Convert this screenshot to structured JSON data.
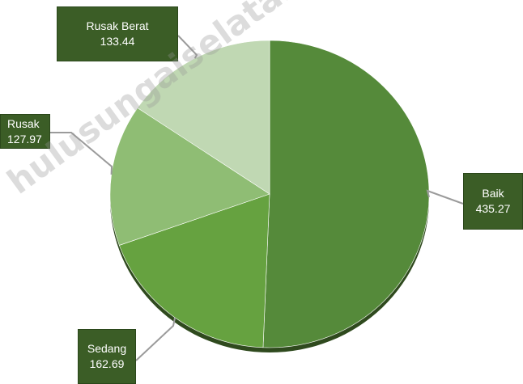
{
  "chart_data": {
    "type": "pie",
    "slices": [
      {
        "label": "Baik",
        "value": 435.27,
        "color": "#558a3a"
      },
      {
        "label": "Sedang",
        "value": 162.69,
        "color": "#66a240"
      },
      {
        "label": "Rusak",
        "value": 127.97,
        "color": "#8fbd74"
      },
      {
        "label": "Rusak Berat",
        "value": 133.44,
        "color": "#c0d8b3"
      }
    ],
    "callout_color": "#3b5d26",
    "leader_color": "#9b9b9b"
  },
  "watermark": "hulusungaiselatankab.bps.go.id"
}
